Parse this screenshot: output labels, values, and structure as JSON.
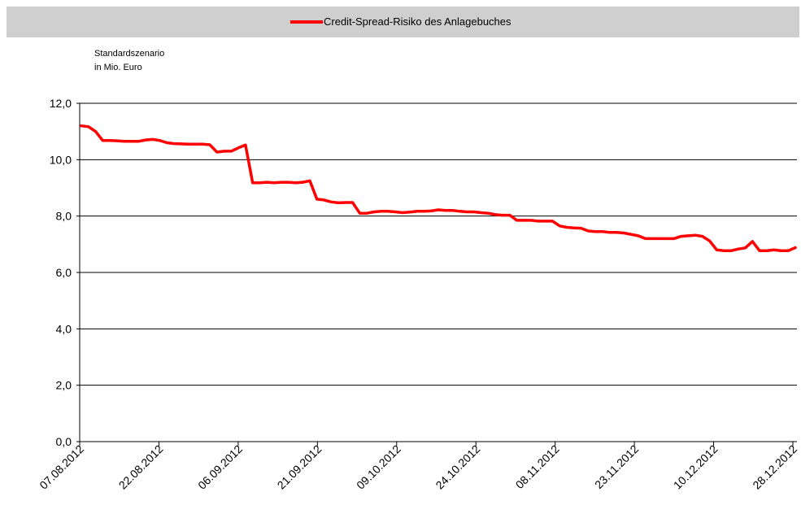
{
  "chart_data": {
    "type": "line",
    "legend": [
      "Credit-Spread-Risiko des Anlagebuches"
    ],
    "ylabel": [
      "Standardszenario",
      "in Mio. Euro"
    ],
    "xlabel": "",
    "ylim": [
      0,
      12
    ],
    "y_ticks": [
      "0,0",
      "2,0",
      "4,0",
      "6,0",
      "8,0",
      "10,0",
      "12,0"
    ],
    "x_tick_labels": [
      "07.08.2012",
      "22.08.2012",
      "06.09.2012",
      "21.09.2012",
      "09.10.2012",
      "24.10.2012",
      "08.11.2012",
      "23.11.2012",
      "10.12.2012",
      "28.12.2012"
    ],
    "legend_position": "top",
    "grid": "horizontal",
    "color": "#ff0000",
    "series": [
      {
        "name": "Credit-Spread-Risiko des Anlagebuches",
        "values": [
          11.2,
          11.17,
          11.0,
          10.68,
          10.68,
          10.67,
          10.65,
          10.65,
          10.65,
          10.7,
          10.72,
          10.68,
          10.6,
          10.57,
          10.56,
          10.55,
          10.55,
          10.55,
          10.53,
          10.27,
          10.3,
          10.3,
          10.42,
          10.52,
          9.18,
          9.18,
          9.2,
          9.18,
          9.2,
          9.2,
          9.18,
          9.2,
          9.25,
          8.6,
          8.57,
          8.5,
          8.47,
          8.48,
          8.48,
          8.1,
          8.1,
          8.15,
          8.17,
          8.17,
          8.15,
          8.12,
          8.14,
          8.17,
          8.17,
          8.18,
          8.22,
          8.2,
          8.2,
          8.17,
          8.15,
          8.15,
          8.12,
          8.1,
          8.05,
          8.03,
          8.03,
          7.85,
          7.85,
          7.85,
          7.82,
          7.82,
          7.82,
          7.65,
          7.6,
          7.58,
          7.57,
          7.47,
          7.45,
          7.45,
          7.42,
          7.42,
          7.4,
          7.35,
          7.3,
          7.2,
          7.2,
          7.2,
          7.2,
          7.2,
          7.28,
          7.3,
          7.32,
          7.28,
          7.12,
          6.8,
          6.77,
          6.77,
          6.83,
          6.87,
          7.1,
          6.77,
          6.77,
          6.8,
          6.77,
          6.77,
          6.88
        ]
      }
    ]
  }
}
